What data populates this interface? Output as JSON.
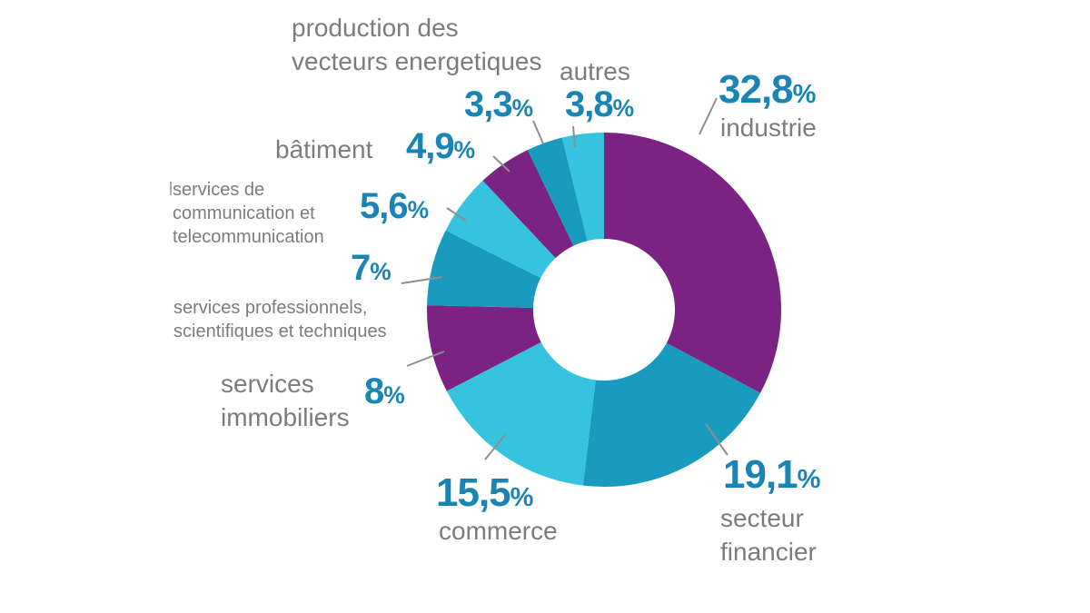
{
  "chart_data": {
    "type": "pie",
    "subtype": "donut",
    "title": "",
    "unit": "%",
    "legend": "none",
    "start_angle_deg": 0,
    "direction": "clockwise",
    "categories": [
      "industrie",
      "secteur financier",
      "commerce",
      "services immobiliers",
      "services professionnels, scientifiques et techniques",
      "services de communication et telecommunication",
      "bâtiment",
      "production des vecteurs energetiques",
      "autres"
    ],
    "values": [
      32.8,
      19.1,
      15.5,
      8,
      7,
      5.6,
      4.9,
      3.3,
      3.8
    ],
    "slices": [
      {
        "key": "industrie",
        "label": "industrie",
        "pct": "32,8",
        "value": 32.8,
        "color": "purple"
      },
      {
        "key": "secteur-financier",
        "label": "secteur\nfinancier",
        "pct": "19,1",
        "value": 19.1,
        "color": "teal"
      },
      {
        "key": "commerce",
        "label": "commerce",
        "pct": "15,5",
        "value": 15.5,
        "color": "cyan"
      },
      {
        "key": "services-immobiliers",
        "label": "services\nimmobiliers",
        "pct": "8",
        "value": 8,
        "color": "purple"
      },
      {
        "key": "services-professionnels",
        "label": "services professionnels,\nscientifiques et techniques",
        "pct": "7",
        "value": 7,
        "color": "teal"
      },
      {
        "key": "services-communication",
        "label": "services de\ncommunication et\ntelecommunication",
        "pct": "5,6",
        "value": 5.6,
        "color": "cyan"
      },
      {
        "key": "batiment",
        "label": "bâtiment",
        "pct": "4,9",
        "value": 4.9,
        "color": "purple"
      },
      {
        "key": "production-vecteurs",
        "label": "production des\nvecteurs energetiques",
        "pct": "3,3",
        "value": 3.3,
        "color": "teal"
      },
      {
        "key": "autres",
        "label": "autres",
        "pct": "3,8",
        "value": 3.8,
        "color": "cyan"
      }
    ],
    "palette": {
      "purple": "#7A2383",
      "teal": "#189BBE",
      "cyan": "#36C3DF"
    },
    "label_colors": {
      "percent": "#1A85B5",
      "name": "#7C7C7C",
      "leader_line": "#8E8E8E"
    },
    "background": "#FFFFFF"
  }
}
